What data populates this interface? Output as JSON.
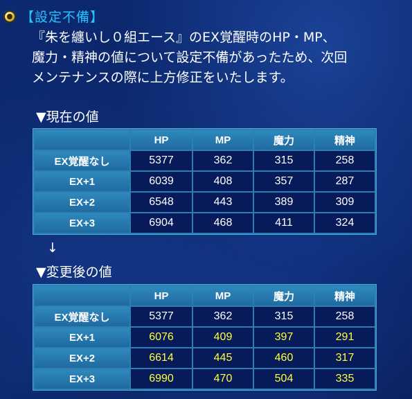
{
  "notice": {
    "title": "【設定不備】",
    "lines": [
      "『朱を纏いし０組エース』のEX覚醒時のHP・MP、",
      "魔力・精神の値について設定不備があったため、次回",
      "メンテナンスの際に上方修正をいたします。"
    ]
  },
  "sections": {
    "current_heading": "▼現在の値",
    "arrow": "↓",
    "after_heading": "▼変更後の値"
  },
  "table_headers": [
    "HP",
    "MP",
    "魔力",
    "精神"
  ],
  "current": {
    "rows": [
      {
        "label": "EX覚醒なし",
        "values": [
          "5377",
          "362",
          "315",
          "258"
        ]
      },
      {
        "label": "EX+1",
        "values": [
          "6039",
          "408",
          "357",
          "287"
        ]
      },
      {
        "label": "EX+2",
        "values": [
          "6548",
          "443",
          "389",
          "309"
        ]
      },
      {
        "label": "EX+3",
        "values": [
          "6904",
          "468",
          "411",
          "324"
        ]
      }
    ]
  },
  "after": {
    "rows": [
      {
        "label": "EX覚醒なし",
        "values": [
          "5377",
          "362",
          "315",
          "258"
        ],
        "changed": false
      },
      {
        "label": "EX+1",
        "values": [
          "6076",
          "409",
          "397",
          "291"
        ],
        "changed": true
      },
      {
        "label": "EX+2",
        "values": [
          "6614",
          "445",
          "460",
          "317"
        ],
        "changed": true
      },
      {
        "label": "EX+3",
        "values": [
          "6990",
          "470",
          "504",
          "335"
        ],
        "changed": true
      }
    ]
  },
  "colors": {
    "title": "#27c3ff",
    "changed_value": "#ffff3a",
    "cell_bg": "#071a5a",
    "header_bg": "#2f89bd"
  },
  "icons": {
    "bullet": "gold-ring-bullet-icon"
  }
}
